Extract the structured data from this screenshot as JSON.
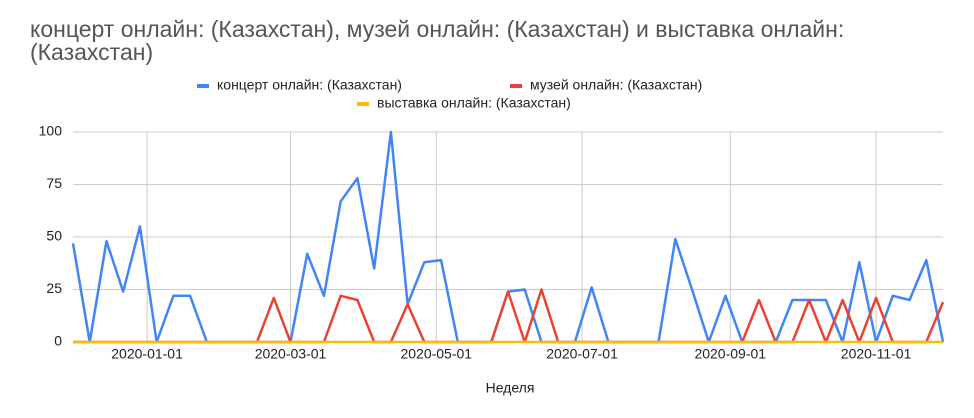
{
  "chart_data": {
    "type": "line",
    "title": "концерт онлайн: (Казахстан), музей онлайн: (Казахстан) и выставка онлайн: (Казахстан)",
    "xlabel": "Неделя",
    "x": [
      "2019-12-01",
      "2019-12-08",
      "2019-12-15",
      "2019-12-22",
      "2019-12-29",
      "2020-01-05",
      "2020-01-12",
      "2020-01-19",
      "2020-01-26",
      "2020-02-02",
      "2020-02-09",
      "2020-02-16",
      "2020-02-23",
      "2020-03-01",
      "2020-03-08",
      "2020-03-15",
      "2020-03-22",
      "2020-03-29",
      "2020-04-05",
      "2020-04-12",
      "2020-04-19",
      "2020-04-26",
      "2020-05-03",
      "2020-05-10",
      "2020-05-17",
      "2020-05-24",
      "2020-05-31",
      "2020-06-07",
      "2020-06-14",
      "2020-06-21",
      "2020-06-28",
      "2020-07-05",
      "2020-07-12",
      "2020-07-19",
      "2020-07-26",
      "2020-08-02",
      "2020-08-09",
      "2020-08-16",
      "2020-08-23",
      "2020-08-30",
      "2020-09-06",
      "2020-09-13",
      "2020-09-20",
      "2020-09-27",
      "2020-10-04",
      "2020-10-11",
      "2020-10-18",
      "2020-10-25",
      "2020-11-01",
      "2020-11-08",
      "2020-11-15",
      "2020-11-22",
      "2020-11-29"
    ],
    "series": [
      {
        "name": "концерт онлайн: (Казахстан)",
        "color": "#4285f4",
        "values": [
          47,
          0,
          48,
          24,
          55,
          0,
          22,
          22,
          0,
          0,
          0,
          0,
          0,
          0,
          42,
          22,
          67,
          78,
          35,
          100,
          18,
          38,
          39,
          0,
          0,
          0,
          24,
          25,
          0,
          0,
          0,
          26,
          0,
          0,
          0,
          0,
          49,
          25,
          0,
          22,
          0,
          0,
          0,
          20,
          20,
          20,
          0,
          38,
          0,
          22,
          20,
          39,
          0
        ]
      },
      {
        "name": "музей онлайн: (Казахстан)",
        "color": "#ea4335",
        "values": [
          0,
          0,
          0,
          0,
          0,
          0,
          0,
          0,
          0,
          0,
          0,
          0,
          21,
          0,
          0,
          0,
          22,
          20,
          0,
          0,
          18,
          0,
          0,
          0,
          0,
          0,
          24,
          0,
          25,
          0,
          0,
          0,
          0,
          0,
          0,
          0,
          0,
          0,
          0,
          0,
          0,
          20,
          0,
          0,
          20,
          0,
          20,
          0,
          21,
          0,
          0,
          0,
          19
        ]
      },
      {
        "name": "выставка онлайн: (Казахстан)",
        "color": "#fbbc04",
        "values": [
          0,
          0,
          0,
          0,
          0,
          0,
          0,
          0,
          0,
          0,
          0,
          0,
          0,
          0,
          0,
          0,
          0,
          0,
          0,
          0,
          0,
          0,
          0,
          0,
          0,
          0,
          0,
          0,
          0,
          0,
          0,
          0,
          0,
          0,
          0,
          0,
          0,
          0,
          0,
          0,
          0,
          0,
          0,
          0,
          0,
          0,
          0,
          0,
          0,
          0,
          0,
          0,
          0
        ]
      }
    ],
    "xlim": [
      "2019-12-01",
      "2020-11-29"
    ],
    "xticks": [
      "2020-01-01",
      "2020-03-01",
      "2020-05-01",
      "2020-07-01",
      "2020-09-01",
      "2020-11-01"
    ],
    "ylim": [
      0,
      100
    ],
    "yticks": [
      0,
      25,
      50,
      75,
      100
    ],
    "grid": true
  }
}
